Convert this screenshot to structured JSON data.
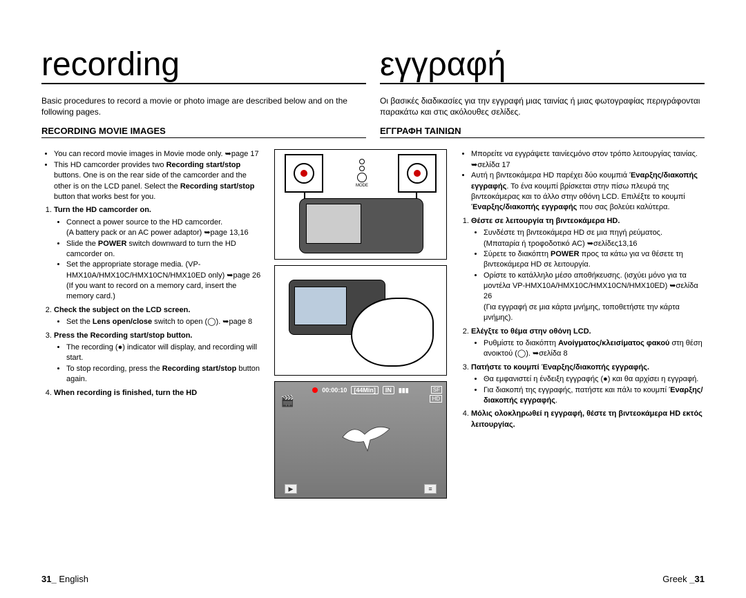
{
  "left": {
    "title": "recording",
    "intro": "Basic procedures to record a movie or photo image are described below and on the following pages.",
    "section_title": "RECORDING MOVIE IMAGES",
    "bullets": [
      "You can record movie images in Movie mode only. ➥page 17",
      "This HD camcorder provides two <b>Recording start/stop</b> buttons. One is on the rear side of the camcorder and the other is on the LCD panel. Select the <b>Recording start/stop</b> button that works best for you."
    ],
    "steps": [
      {
        "text": "Turn the HD camcorder on.",
        "subs": [
          "Connect a power source to the HD camcorder.\n(A battery pack or an AC power adaptor) ➥page 13,16",
          "Slide the <b>POWER</b> switch downward to turn the HD camcorder on.",
          "Set the appropriate storage media. (VP-HMX10A/HMX10C/HMX10CN/HMX10ED only) ➥page 26\n(If you want to record on a memory card, insert the memory card.)"
        ]
      },
      {
        "text": "Check the subject on the LCD screen.",
        "subs": [
          "Set the <b>Lens open/close</b> switch to open (◯). ➥page 8"
        ]
      },
      {
        "text": "Press the <b>Recording start/stop</b> button.",
        "subs": [
          "The recording (●) indicator will display, and recording will start.",
          "To stop recording, press the <b>Recording start/stop</b> button again."
        ]
      },
      {
        "text": "When recording is finished, turn the HD"
      }
    ],
    "page_label": "English",
    "page_num": "31_"
  },
  "right": {
    "title": "εγγραφή",
    "intro": "Οι βασικές διαδικασίες για την εγγραφή μιας ταινίας ή μιας φωτογραφίας περιγράφονται παρακάτω και στις ακόλουθες σελίδες.",
    "section_title": "ΕΓΓΡΑΦΗ ΤΑΙΝΙΩΝ",
    "bullets": [
      "Μπορείτε να εγγράψετε ταινίεςμόνο στον τρόπο λειτουργίας ταινίας. ➥σελίδα 17",
      "Αυτή η βιντεοκάμερα HD παρέχει δύο κουμπιά <b>Έναρξης/διακοπής εγγραφής</b>. Το ένα κουμπί βρίσκεται στην πίσω πλευρά της βιντεοκάμερας και το άλλο στην οθόνη LCD. Επιλέξτε το κουμπί <b>Έναρξης/διακοπής εγγραφής</b> που σας βολεύει καλύτερα."
    ],
    "steps": [
      {
        "text": "Θέστε σε λειτουργία τη βιντεοκάμερα HD.",
        "subs": [
          "Συνδέστε τη βιντεοκάμερα HD σε μια πηγή ρεύματος.\n(Μπαταρία ή τροφοδοτικό AC) ➥σελίδες13,16",
          "Σύρετε το διακόπτη <b>POWER</b> προς τα κάτω για να θέσετε τη βιντεοκάμερα HD σε λειτουργία.",
          "Ορίστε το κατάλληλο μέσο αποθήκευσης. (ισχύει μόνο για τα μοντέλα VP-HMX10A/HMX10C/HMX10CN/HMX10ED) ➥σελίδα 26\n(Για εγγραφή σε μια κάρτα μνήμης, τοποθετήστε την κάρτα μνήμης)."
        ]
      },
      {
        "text": "Ελέγξτε το θέμα στην οθόνη LCD.",
        "subs": [
          "Ρυθμίστε το διακόπτη <b>Ανοίγματος/κλεισίματος φακού</b> στη θέση ανοικτού (◯). ➥σελίδα 8"
        ]
      },
      {
        "text": "Πατήστε το κουμπί <b>Έναρξης/διακοπής εγγραφής</b>.",
        "subs": [
          "Θα εμφανιστεί η ένδειξη εγγραφής (●) και θα αρχίσει η εγγραφή.",
          "Για διακοπή της εγγραφής, πατήστε και πάλι το κουμπί <b>Έναρξης/διακοπής εγγραφής</b>."
        ]
      },
      {
        "text": "Μόλις ολοκληρωθεί η εγγραφή, θέστε τη βιντεοκάμερα HD εκτός λειτουργίας."
      }
    ],
    "page_label": "Greek",
    "page_num": "_31"
  },
  "illustration3": {
    "time": "00:00:10",
    "remaining": "[44Min]",
    "card_icon": "IN",
    "badges": [
      "SF",
      "HD"
    ],
    "movie_icon": "🎬",
    "play_icon": "▶",
    "menu_icon": "≡"
  },
  "ill1": {
    "mode_label": "MODE"
  },
  "colors": {
    "text": "#000000",
    "background": "#ffffff",
    "rec_dot": "#ff0000"
  }
}
